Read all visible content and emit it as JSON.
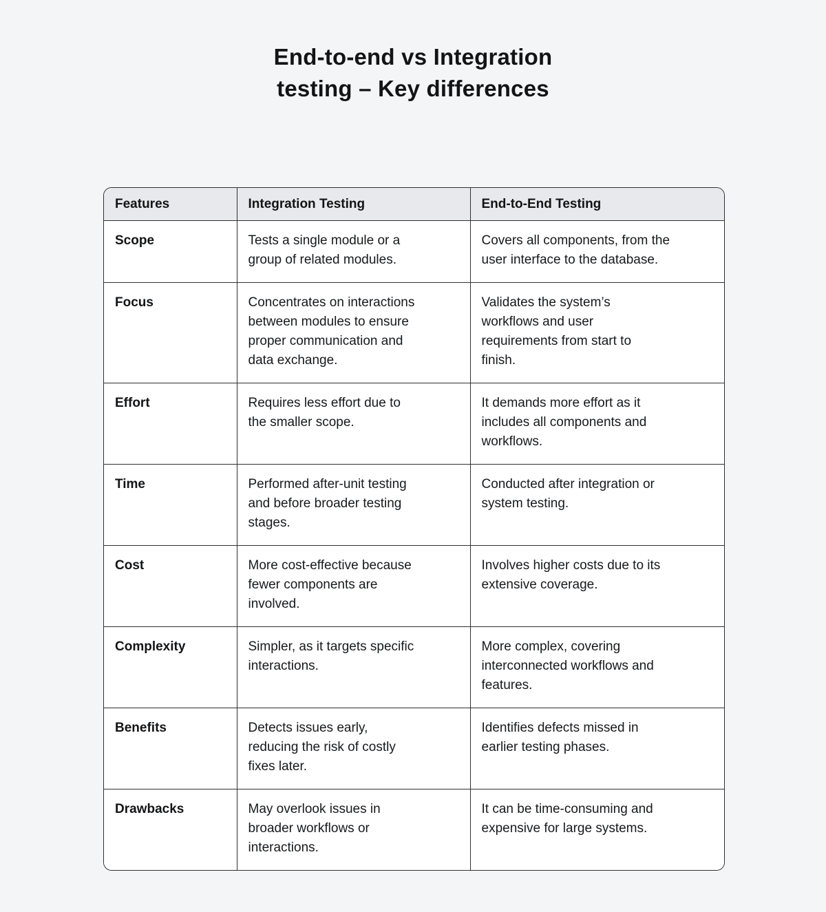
{
  "title": {
    "line1": "End-to-end vs Integration",
    "line2": "testing – Key differences"
  },
  "colors": {
    "page_background": "#f4f5f7",
    "header_background": "#e7e9ec",
    "cell_background": "#ffffff",
    "border": "#2f2f2f",
    "text": "#17191c"
  },
  "table": {
    "columns": [
      "Features",
      "Integration Testing",
      "End-to-End Testing"
    ],
    "rows": [
      {
        "feature": "Scope",
        "integration": "Tests a single module or a\ngroup of related modules.",
        "e2e": "Covers all components, from the\nuser interface to the database."
      },
      {
        "feature": "Focus",
        "integration": "Concentrates on interactions\nbetween modules to ensure\nproper communication and\ndata exchange.",
        "e2e": "Validates the system’s\nworkflows and user\nrequirements from start to\nfinish."
      },
      {
        "feature": "Effort",
        "integration": "Requires less effort due to\nthe smaller scope.",
        "e2e": "It demands more effort as it\nincludes all components and\nworkflows."
      },
      {
        "feature": "Time",
        "integration": "Performed after-unit testing\nand before broader testing\nstages.",
        "e2e": "Conducted after integration or\nsystem testing."
      },
      {
        "feature": "Cost",
        "integration": "More cost-effective because\nfewer components are\ninvolved.",
        "e2e": "Involves higher costs due to its\nextensive coverage."
      },
      {
        "feature": "Complexity",
        "integration": "Simpler, as it targets specific\ninteractions.",
        "e2e": "More complex, covering\ninterconnected workflows and\nfeatures."
      },
      {
        "feature": "Benefits",
        "integration": "Detects issues early,\nreducing the risk of costly\nfixes later.",
        "e2e": "Identifies defects missed in\nearlier testing phases."
      },
      {
        "feature": "Drawbacks",
        "integration": "May overlook issues in\nbroader workflows or\ninteractions.",
        "e2e": "It can be time-consuming and\nexpensive for large systems."
      }
    ]
  }
}
